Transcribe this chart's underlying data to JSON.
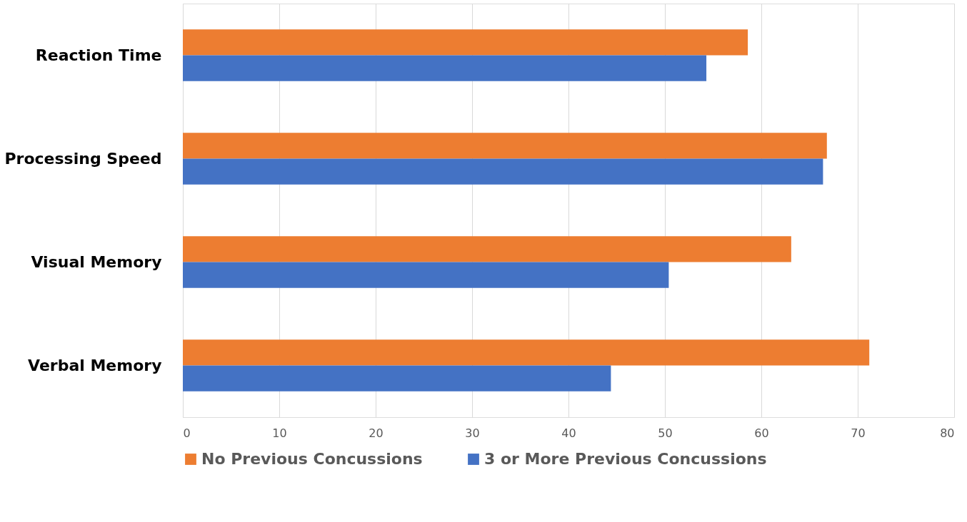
{
  "chart_data": {
    "type": "bar",
    "orientation": "horizontal",
    "categories": [
      "Reaction Time",
      "Processing Speed",
      "Visual Memory",
      "Verbal Memory"
    ],
    "series": [
      {
        "name": "No Previous Concussions",
        "color": "#ed7d31",
        "values": [
          58.6,
          66.8,
          63.1,
          71.2
        ]
      },
      {
        "name": "3 or More Previous Concussions",
        "color": "#4472c4",
        "values": [
          54.3,
          66.4,
          50.4,
          44.4
        ]
      }
    ],
    "xlim": [
      0,
      80
    ],
    "xticks": [
      0,
      10,
      20,
      30,
      40,
      50,
      60,
      70,
      80
    ],
    "grid": "x",
    "legend": "bottom"
  }
}
